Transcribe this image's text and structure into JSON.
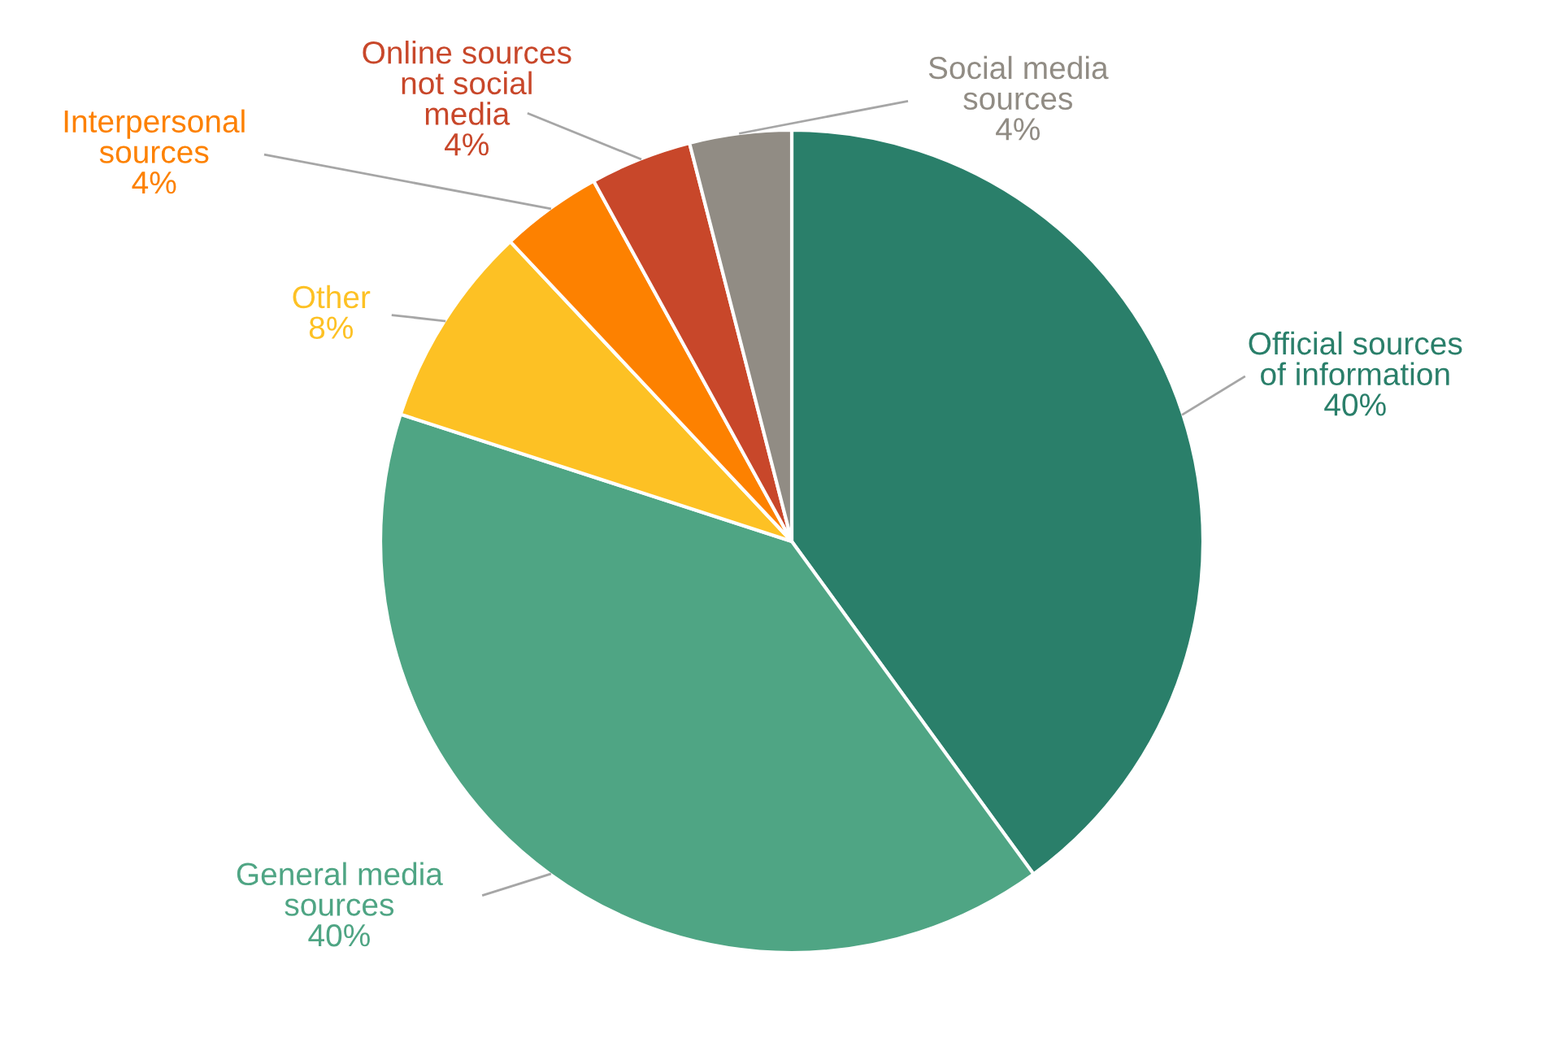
{
  "chart_data": {
    "type": "pie",
    "categories": [
      "Official sources\nof information",
      "General media\nsources",
      "Other",
      "Interpersonal\nsources",
      "Online sources\nnot social\nmedia",
      "Social media\nsources"
    ],
    "values": [
      40,
      40,
      8,
      4,
      4,
      4
    ],
    "value_labels": [
      "40%",
      "40%",
      "8%",
      "4%",
      "4%",
      "4%"
    ],
    "colors": [
      "#2a7f6a",
      "#4fa584",
      "#fdc124",
      "#fd8100",
      "#c8472a",
      "#918c84"
    ]
  }
}
